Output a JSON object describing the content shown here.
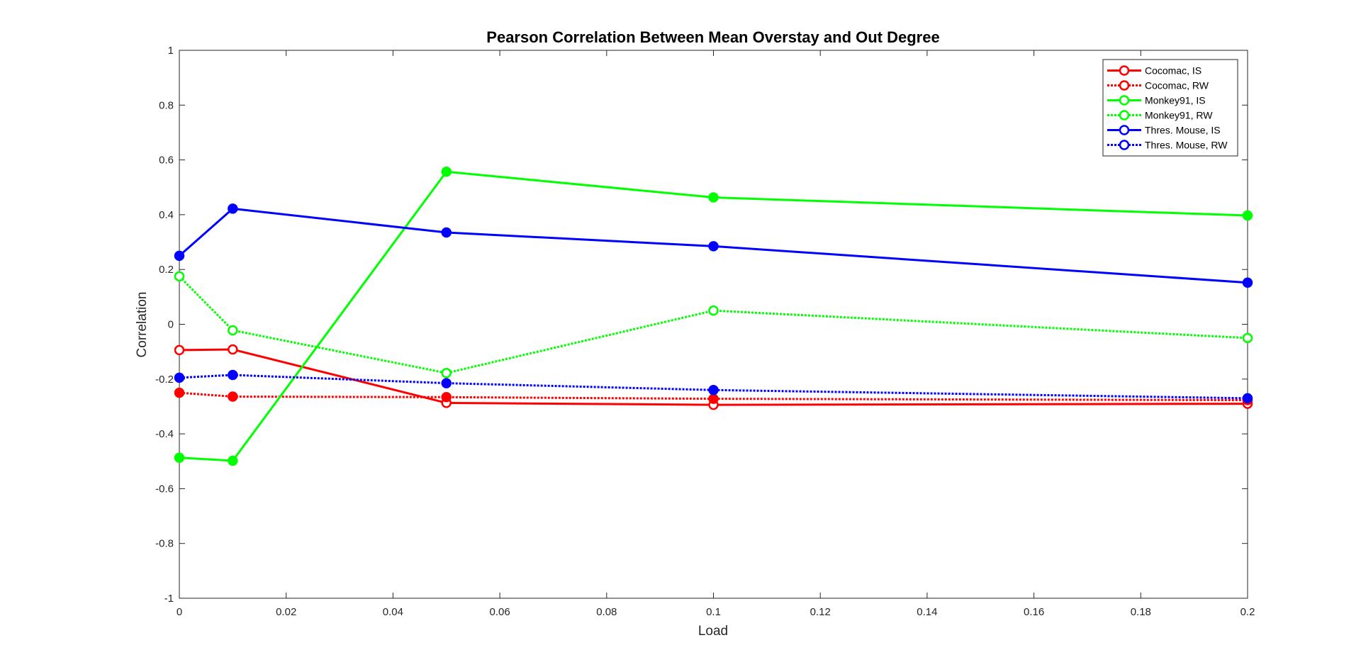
{
  "chart_data": {
    "type": "line",
    "title": "Pearson Correlation Between Mean Overstay and Out Degree",
    "xlabel": "Load",
    "ylabel": "Correlation",
    "xlim": [
      0,
      0.2
    ],
    "ylim": [
      -1,
      1
    ],
    "x_ticks": [
      0,
      0.02,
      0.04,
      0.06,
      0.08,
      0.1,
      0.12,
      0.14,
      0.16,
      0.18,
      0.2
    ],
    "x_tick_labels": [
      "0",
      "0.02",
      "0.04",
      "0.06",
      "0.08",
      "0.1",
      "0.12",
      "0.14",
      "0.16",
      "0.18",
      "0.2"
    ],
    "y_ticks": [
      -1,
      -0.8,
      -0.6,
      -0.4,
      -0.2,
      0,
      0.2,
      0.4,
      0.6,
      0.8,
      1
    ],
    "y_tick_labels": [
      "-1",
      "-0.8",
      "-0.6",
      "-0.4",
      "-0.2",
      "0",
      "0.2",
      "0.4",
      "0.6",
      "0.8",
      "1"
    ],
    "grid": false,
    "legend_position": "top-right",
    "x": [
      0,
      0.01,
      0.05,
      0.1,
      0.2
    ],
    "series": [
      {
        "name": "Cocomac, IS",
        "color": "#ff0000",
        "dashed": false,
        "filled": false,
        "values": [
          -0.094,
          -0.092,
          -0.287,
          -0.294,
          -0.29
        ]
      },
      {
        "name": "Cocomac, RW",
        "color": "#ff0000",
        "dashed": true,
        "filled": true,
        "values": [
          -0.25,
          -0.264,
          -0.266,
          -0.272,
          -0.277
        ]
      },
      {
        "name": "Monkey91, IS",
        "color": "#00ff00",
        "dashed": false,
        "filled": true,
        "values": [
          -0.487,
          -0.498,
          0.557,
          0.463,
          0.397
        ]
      },
      {
        "name": "Monkey91, RW",
        "color": "#00ff00",
        "dashed": true,
        "filled": false,
        "values": [
          0.175,
          -0.022,
          -0.178,
          0.05,
          -0.05
        ]
      },
      {
        "name": "Thres. Mouse, IS",
        "color": "#0000ff",
        "dashed": false,
        "filled": true,
        "values": [
          0.25,
          0.422,
          0.335,
          0.285,
          0.152
        ]
      },
      {
        "name": "Thres. Mouse, RW",
        "color": "#0000ff",
        "dashed": true,
        "filled": true,
        "values": [
          -0.195,
          -0.185,
          -0.215,
          -0.24,
          -0.27
        ]
      }
    ]
  }
}
